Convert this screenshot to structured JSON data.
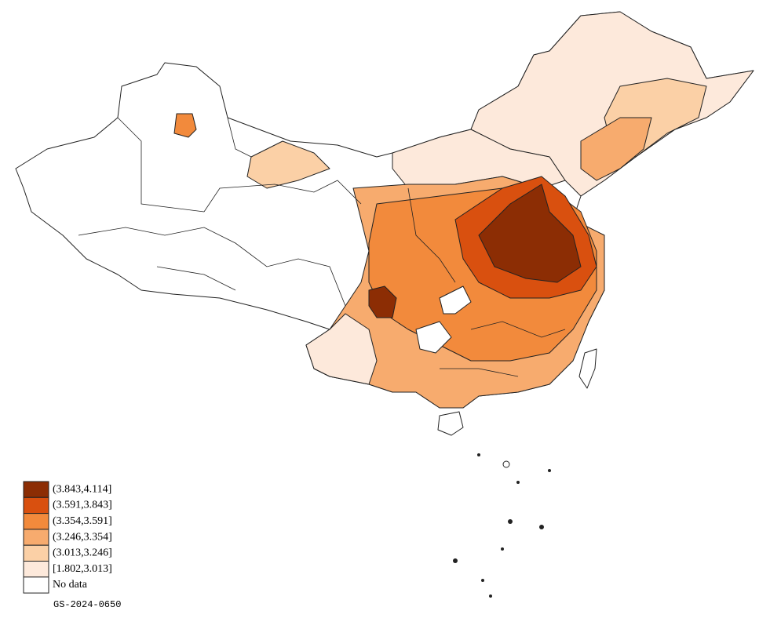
{
  "legend": {
    "items": [
      {
        "label": "(3.843,4.114]",
        "color": "#8c2d04"
      },
      {
        "label": "(3.591,3.843]",
        "color": "#d9500f"
      },
      {
        "label": "(3.354,3.591]",
        "color": "#f28a3c"
      },
      {
        "label": "(3.246,3.354]",
        "color": "#f7ab6e"
      },
      {
        "label": "(3.013,3.246]",
        "color": "#fbd0a6"
      },
      {
        "label": "[1.802,3.013]",
        "color": "#fde9db"
      },
      {
        "label": "No data",
        "color": "#ffffff"
      }
    ]
  },
  "map_code": "GS-2024-0650"
}
